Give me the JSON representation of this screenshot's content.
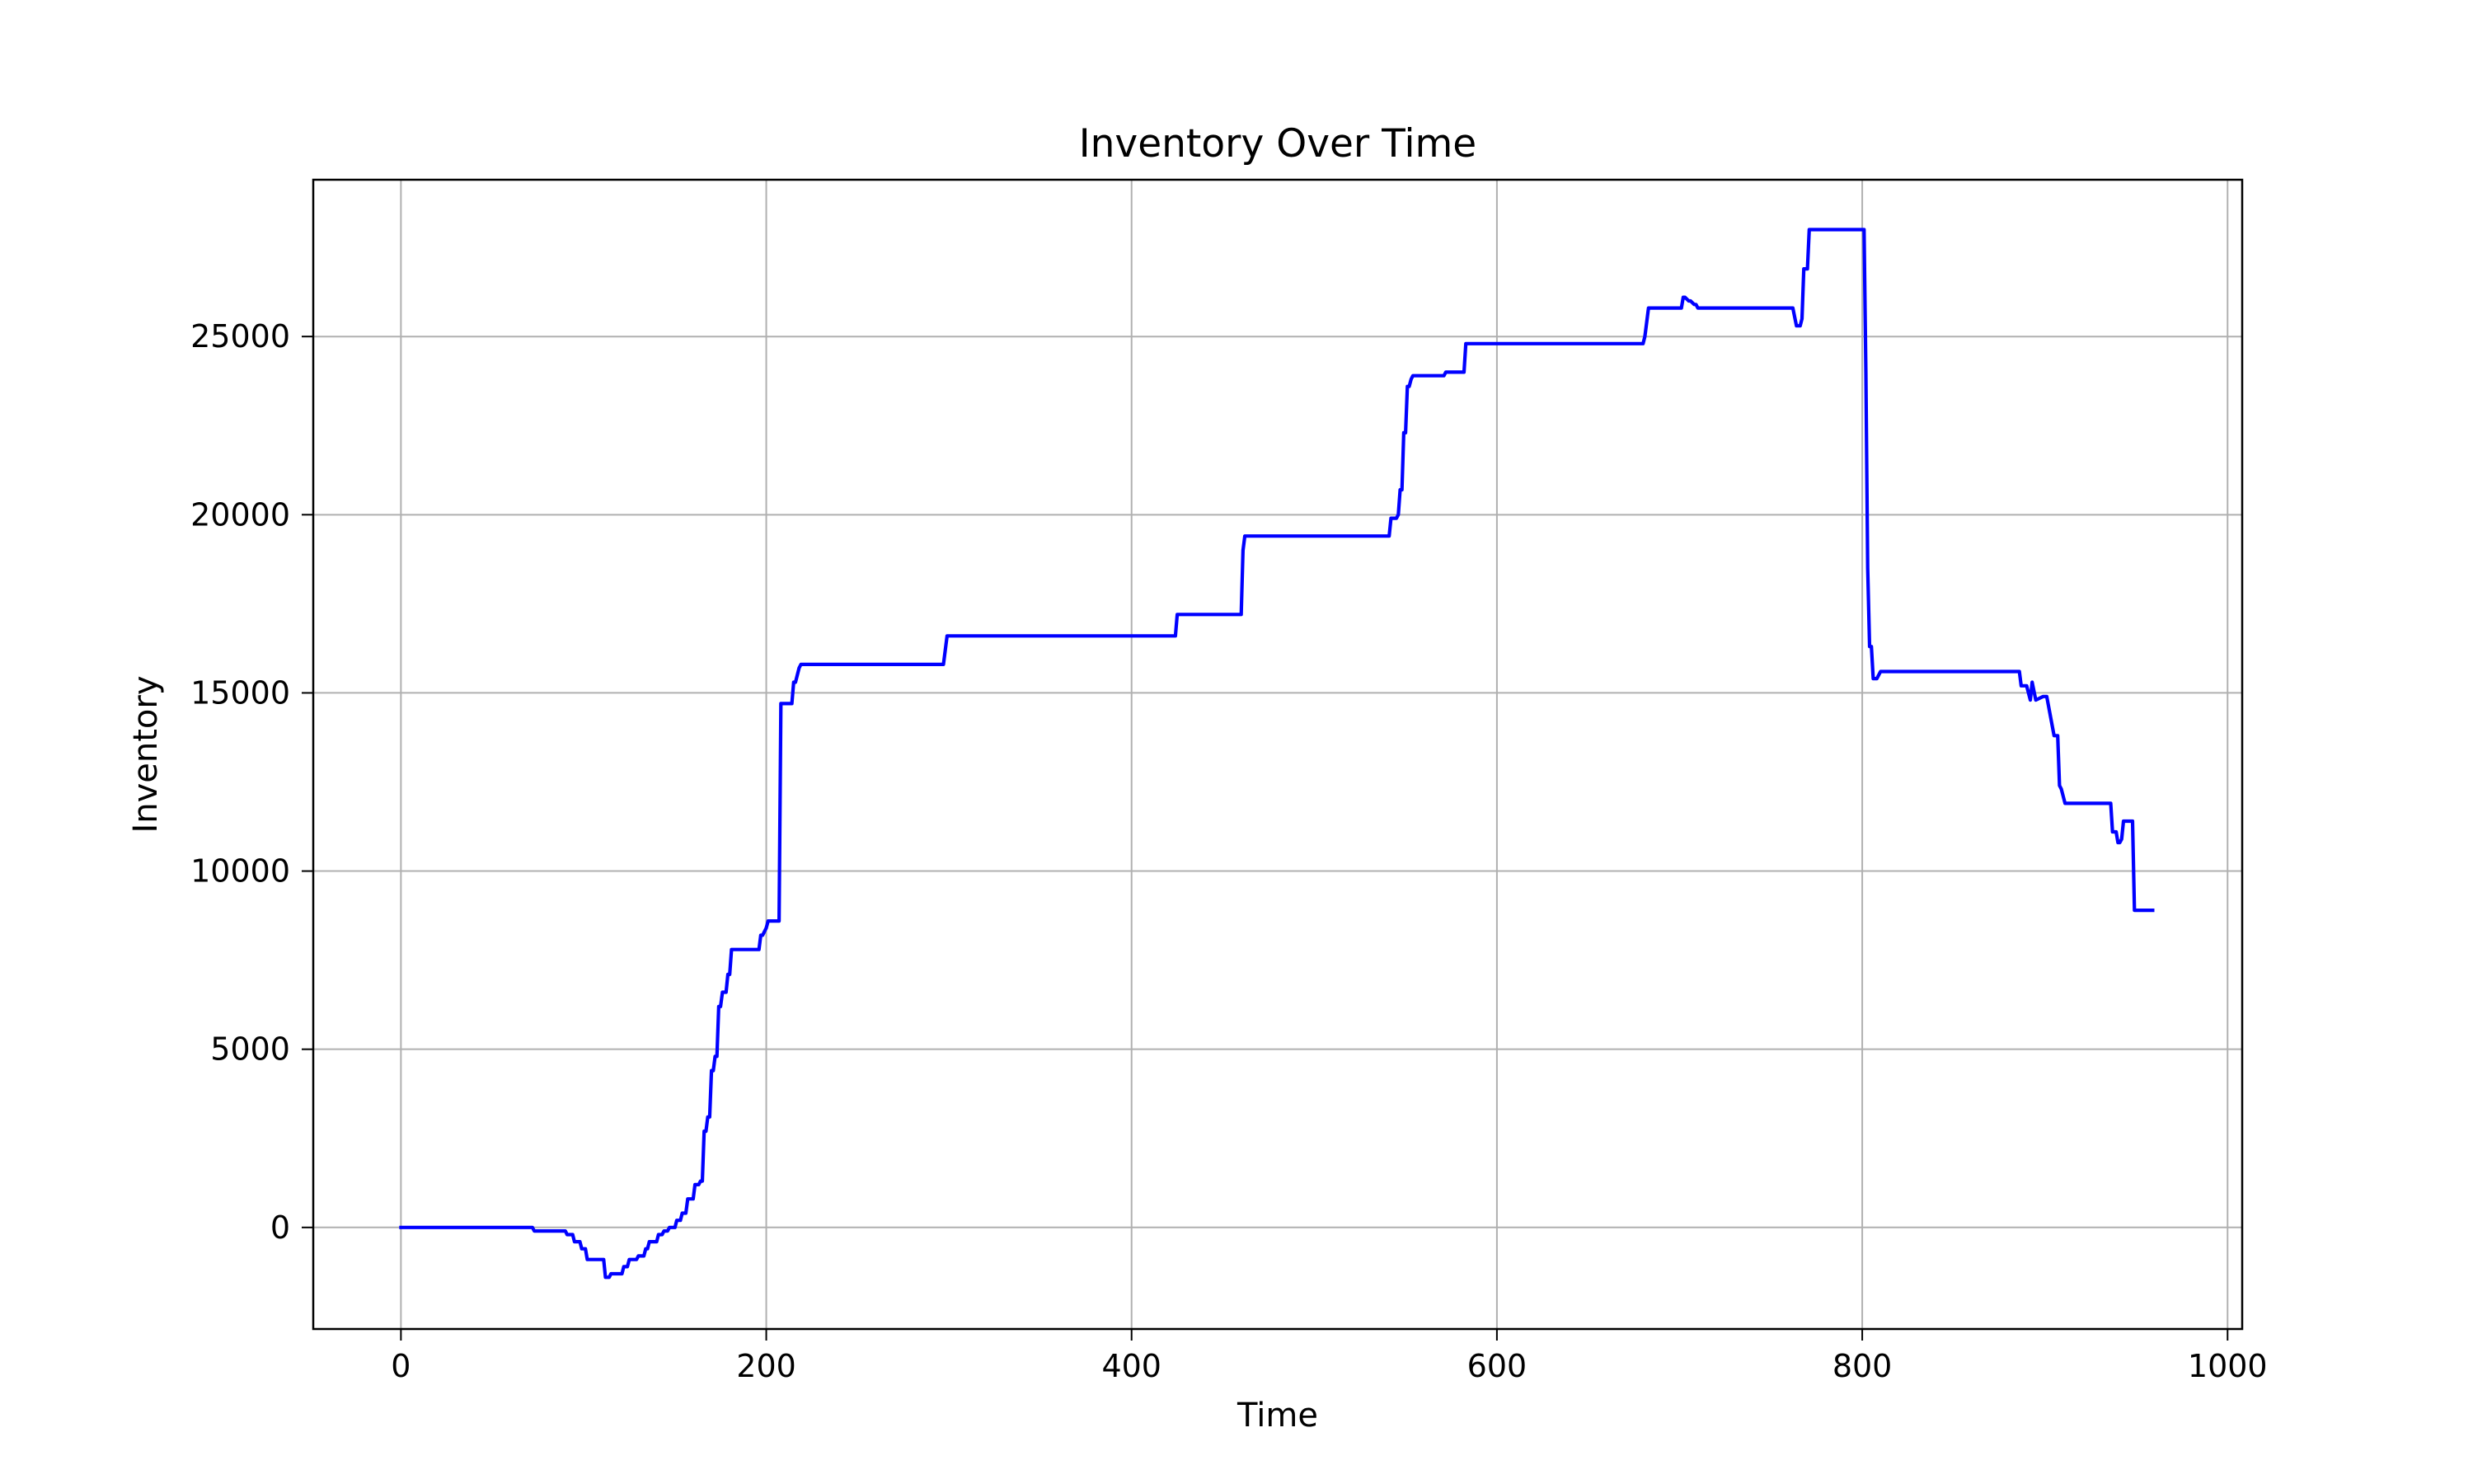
{
  "chart_data": {
    "type": "line",
    "title": "Inventory Over Time",
    "xlabel": "Time",
    "ylabel": "Inventory",
    "xlim": [
      -48,
      1008
    ],
    "ylim": [
      -2850,
      29400
    ],
    "xticks": [
      0,
      200,
      400,
      600,
      800,
      1000
    ],
    "xtick_labels": [
      "0",
      "200",
      "400",
      "600",
      "800",
      "1000"
    ],
    "yticks": [
      0,
      5000,
      10000,
      15000,
      20000,
      25000
    ],
    "ytick_labels": [
      "0",
      "5000",
      "10000",
      "15000",
      "20000",
      "25000"
    ],
    "grid": true,
    "legend": "none",
    "series": [
      {
        "color": "#0000ff",
        "x": [
          0,
          72,
          73,
          90,
          91,
          94,
          95,
          98,
          99,
          101,
          102,
          104,
          105,
          111,
          112,
          114,
          115,
          121,
          122,
          124,
          125,
          129,
          130,
          133,
          134,
          135,
          136,
          140,
          141,
          143,
          144,
          146,
          147,
          150,
          151,
          153,
          154,
          156,
          157,
          160,
          161,
          163,
          164,
          165,
          166,
          167,
          168,
          169,
          170,
          171,
          172,
          173,
          174,
          175,
          176,
          178,
          179,
          180,
          181,
          183,
          184,
          185,
          186,
          187,
          188,
          190,
          196,
          197,
          198,
          200,
          201,
          207,
          208,
          209,
          214,
          215,
          216,
          218,
          219,
          296,
          297,
          299,
          424,
          425,
          460,
          461,
          462,
          540,
          541,
          542,
          545,
          546,
          547,
          548,
          549,
          550,
          551,
          552,
          553,
          554,
          555,
          571,
          572,
          581,
          582,
          583,
          680,
          681,
          683,
          701,
          702,
          703,
          705,
          706,
          708,
          709,
          710,
          761,
          762,
          764,
          766,
          767,
          768,
          770,
          771,
          800,
          801,
          802,
          803,
          804,
          805,
          806,
          807,
          808,
          810,
          885,
          886,
          887,
          889,
          890,
          892,
          893,
          895,
          899,
          900,
          901,
          905,
          906,
          907,
          908,
          909,
          911,
          935,
          936,
          937,
          938,
          939,
          940,
          941,
          942,
          943,
          947,
          948,
          949,
          959
        ],
        "y": [
          0,
          0,
          -100,
          -100,
          -200,
          -200,
          -400,
          -400,
          -600,
          -600,
          -900,
          -900,
          -900,
          -900,
          -1400,
          -1400,
          -1300,
          -1300,
          -1100,
          -1100,
          -900,
          -900,
          -800,
          -800,
          -600,
          -600,
          -400,
          -400,
          -200,
          -200,
          -100,
          -100,
          0,
          0,
          200,
          200,
          400,
          400,
          800,
          800,
          1200,
          1200,
          1300,
          1300,
          2700,
          2700,
          3100,
          3100,
          4400,
          4400,
          4800,
          4800,
          6200,
          6200,
          6600,
          6600,
          7100,
          7100,
          7800,
          7800,
          7800,
          7800,
          7800,
          7800,
          7800,
          7800,
          7800,
          8200,
          8200,
          8400,
          8600,
          8600,
          14700,
          14700,
          14700,
          15300,
          15300,
          15700,
          15800,
          15800,
          15800,
          16600,
          16600,
          17200,
          17200,
          19000,
          19400,
          19400,
          19400,
          19900,
          19900,
          20000,
          20700,
          20700,
          22300,
          22300,
          23600,
          23600,
          23800,
          23900,
          23900,
          23900,
          24000,
          24000,
          24000,
          24800,
          24800,
          25000,
          25800,
          25800,
          26100,
          26100,
          26000,
          26000,
          25900,
          25900,
          25800,
          25800,
          25800,
          25300,
          25300,
          25500,
          26900,
          26900,
          28000,
          28000,
          28000,
          24000,
          18500,
          16300,
          16300,
          15400,
          15400,
          15400,
          15600,
          15600,
          15600,
          15200,
          15200,
          15200,
          14800,
          15300,
          14800,
          14900,
          14900,
          14900,
          13800,
          13800,
          13800,
          12400,
          12300,
          11900,
          11900,
          11900,
          11100,
          11100,
          11100,
          10800,
          10800,
          10900,
          11400,
          11400,
          11400,
          8900,
          8900
        ]
      }
    ]
  }
}
